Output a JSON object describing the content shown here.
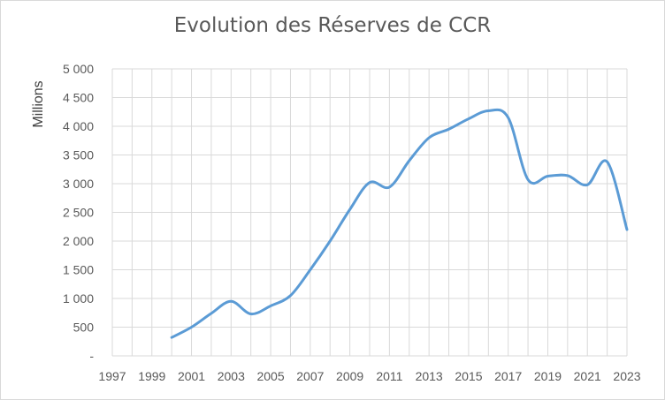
{
  "chart_data": {
    "type": "line",
    "title": "Evolution des Réserves de CCR",
    "ylabel": "Millions",
    "xlabel": "",
    "ylim": [
      0,
      5000
    ],
    "y_ticks": [
      0,
      500,
      1000,
      1500,
      2000,
      2500,
      3000,
      3500,
      4000,
      4500,
      5000
    ],
    "y_tick_labels": [
      "-",
      "500",
      "1 000",
      "1 500",
      "2 000",
      "2 500",
      "3 000",
      "3 500",
      "4 000",
      "4 500",
      "5 000"
    ],
    "xlim": [
      1997,
      2023
    ],
    "x_tick_labels": [
      "1997",
      "1999",
      "2001",
      "2003",
      "2005",
      "2007",
      "2009",
      "2011",
      "2013",
      "2015",
      "2017",
      "2019",
      "2021",
      "2023"
    ],
    "grid": true,
    "legend": "none",
    "colors": {
      "line": "#5b9bd5",
      "grid": "#d9d9d9",
      "text": "#595959"
    },
    "x": [
      2000,
      2001,
      2002,
      2003,
      2004,
      2005,
      2006,
      2007,
      2008,
      2009,
      2010,
      2011,
      2012,
      2013,
      2014,
      2015,
      2016,
      2017,
      2018,
      2019,
      2020,
      2021,
      2022,
      2023
    ],
    "values": [
      320,
      500,
      740,
      950,
      730,
      870,
      1050,
      1500,
      2000,
      2550,
      3020,
      2940,
      3400,
      3800,
      3950,
      4130,
      4270,
      4150,
      3070,
      3130,
      3140,
      2980,
      3380,
      2200
    ]
  }
}
